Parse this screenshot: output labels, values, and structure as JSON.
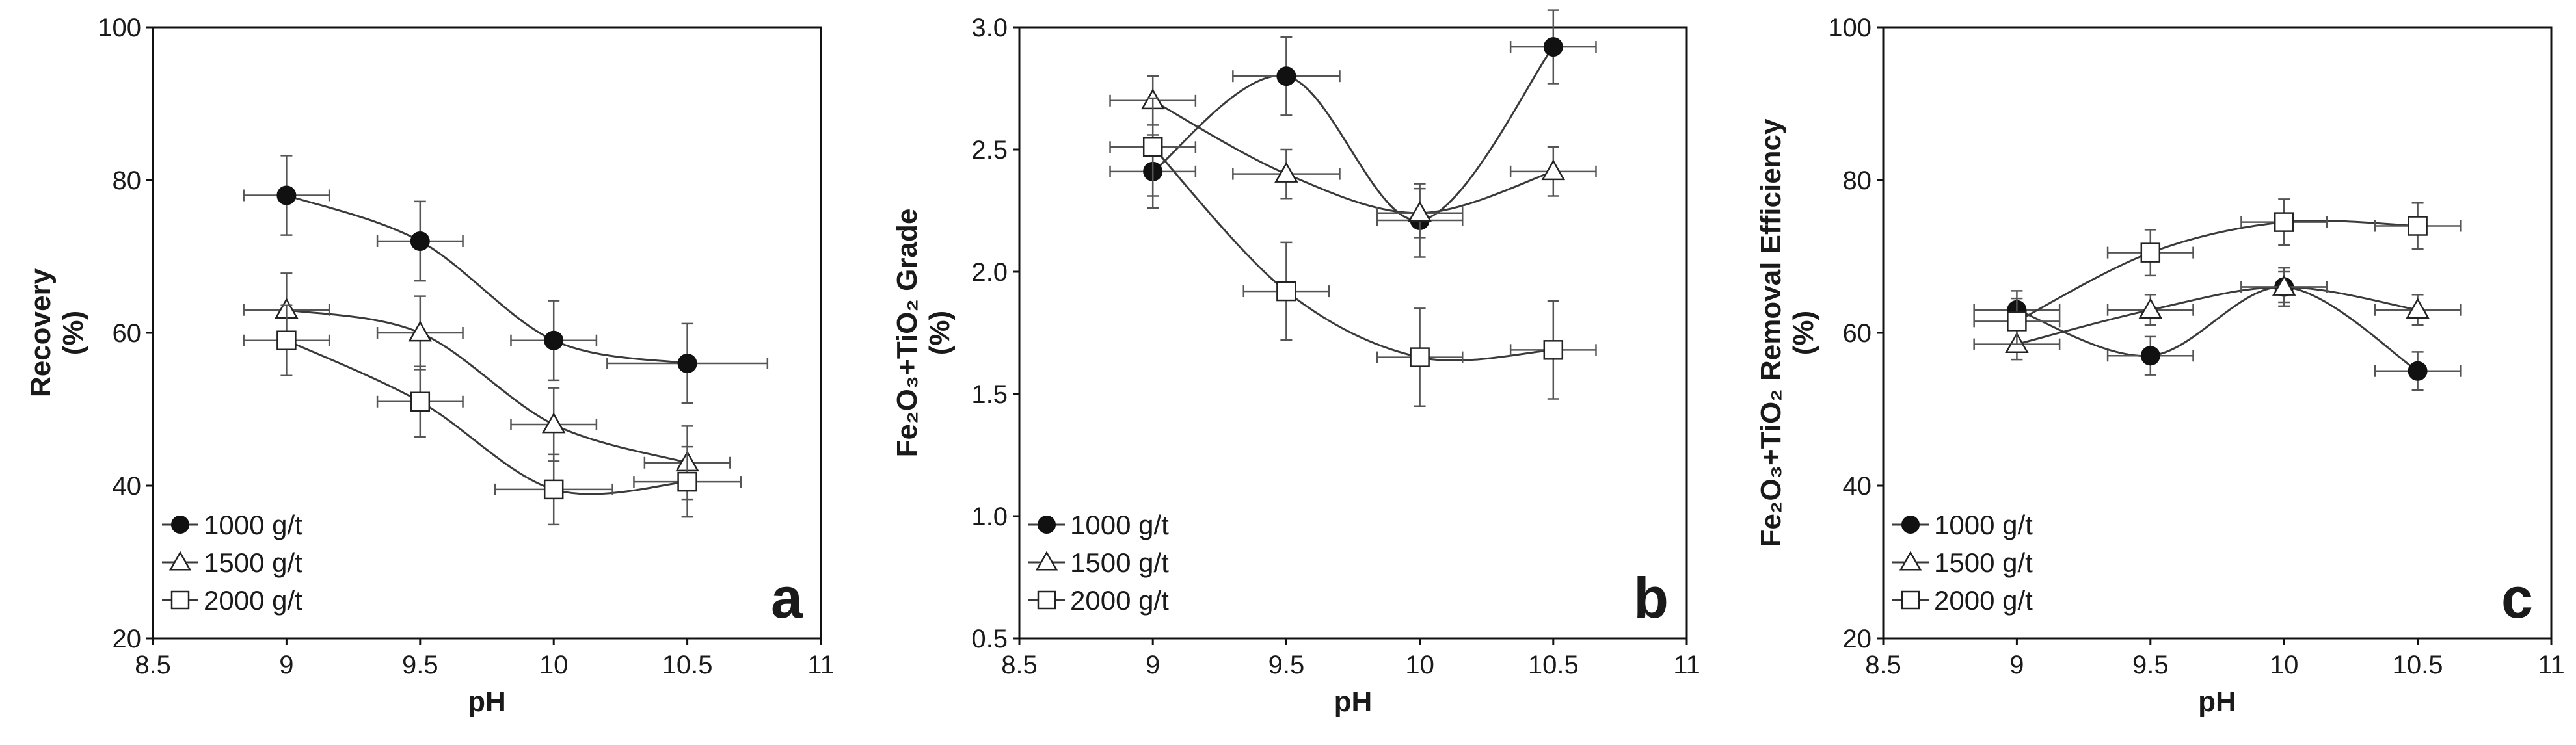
{
  "chart_data": [
    {
      "type": "scatter",
      "panel_label": "a",
      "xlabel": "pH",
      "ylabel_lines": [
        "Recovery",
        "(%)"
      ],
      "xlim": [
        8.5,
        11
      ],
      "ylim": [
        20,
        100
      ],
      "xticks": [
        8.5,
        9,
        9.5,
        10,
        10.5,
        11
      ],
      "xtick_labels": [
        "8.5",
        "9",
        "9.5",
        "10",
        "10.5",
        "11"
      ],
      "yticks": [
        20,
        40,
        60,
        80,
        100
      ],
      "ytick_labels": [
        "20",
        "40",
        "60",
        "80",
        "100"
      ],
      "legend_position": "bottom-left",
      "grid": false,
      "series": [
        {
          "name": "1000 g/t",
          "marker": "filled-circle",
          "x": [
            9,
            9.5,
            10,
            10.5
          ],
          "y": [
            78,
            72,
            59,
            56
          ],
          "xerr": [
            0.16,
            0.16,
            0.16,
            0.3
          ],
          "yerr": [
            5.2,
            5.2,
            5.2,
            5.2
          ]
        },
        {
          "name": "1500 g/t",
          "marker": "open-triangle",
          "x": [
            9,
            9.5,
            10,
            10.5
          ],
          "y": [
            63,
            60,
            48,
            43
          ],
          "xerr": [
            0.16,
            0.16,
            0.16,
            0.16
          ],
          "yerr": [
            4.8,
            4.8,
            4.8,
            4.8
          ]
        },
        {
          "name": "2000 g/t",
          "marker": "open-square",
          "x": [
            9,
            9.5,
            10,
            10.5
          ],
          "y": [
            59,
            51,
            39.5,
            40.5
          ],
          "xerr": [
            0.16,
            0.16,
            0.22,
            0.2
          ],
          "yerr": [
            4.6,
            4.6,
            4.6,
            4.6
          ]
        }
      ]
    },
    {
      "type": "scatter",
      "panel_label": "b",
      "xlabel": "pH",
      "ylabel_lines": [
        "Fe₂O₃+TiO₂ Grade",
        "(%)"
      ],
      "xlim": [
        8.5,
        11
      ],
      "ylim": [
        0.5,
        3.0
      ],
      "xticks": [
        8.5,
        9,
        9.5,
        10,
        10.5,
        11
      ],
      "xtick_labels": [
        "8.5",
        "9",
        "9.5",
        "10",
        "10.5",
        "11"
      ],
      "yticks": [
        0.5,
        1.0,
        1.5,
        2.0,
        2.5,
        3.0
      ],
      "ytick_labels": [
        "0.5",
        "1.0",
        "1.5",
        "2.0",
        "2.5",
        "3.0"
      ],
      "legend_position": "bottom-left",
      "grid": false,
      "series": [
        {
          "name": "1000 g/t",
          "marker": "filled-circle",
          "x": [
            9,
            9.5,
            10,
            10.5
          ],
          "y": [
            2.41,
            2.8,
            2.21,
            2.92
          ],
          "xerr": [
            0.16,
            0.2,
            0.16,
            0.16
          ],
          "yerr": [
            0.15,
            0.16,
            0.15,
            0.15
          ]
        },
        {
          "name": "1500 g/t",
          "marker": "open-triangle",
          "x": [
            9,
            9.5,
            10,
            10.5
          ],
          "y": [
            2.7,
            2.4,
            2.24,
            2.41
          ],
          "xerr": [
            0.16,
            0.2,
            0.16,
            0.16
          ],
          "yerr": [
            0.1,
            0.1,
            0.1,
            0.1
          ]
        },
        {
          "name": "2000 g/t",
          "marker": "open-square",
          "x": [
            9,
            9.5,
            10,
            10.5
          ],
          "y": [
            2.51,
            1.92,
            1.65,
            1.68
          ],
          "xerr": [
            0.16,
            0.16,
            0.16,
            0.16
          ],
          "yerr": [
            0.2,
            0.2,
            0.2,
            0.2
          ]
        }
      ]
    },
    {
      "type": "scatter",
      "panel_label": "c",
      "xlabel": "pH",
      "ylabel_lines": [
        "Fe₂O₃+TiO₂ Removal Efficiency",
        "(%)"
      ],
      "xlim": [
        8.5,
        11
      ],
      "ylim": [
        20,
        100
      ],
      "xticks": [
        8.5,
        9,
        9.5,
        10,
        10.5,
        11
      ],
      "xtick_labels": [
        "8.5",
        "9",
        "9.5",
        "10",
        "10.5",
        "11"
      ],
      "yticks": [
        20,
        40,
        60,
        80,
        100
      ],
      "ytick_labels": [
        "20",
        "40",
        "60",
        "80",
        "100"
      ],
      "legend_position": "bottom-left",
      "grid": false,
      "series": [
        {
          "name": "1000 g/t",
          "marker": "filled-circle",
          "x": [
            9,
            9.5,
            10,
            10.5
          ],
          "y": [
            63,
            57,
            66,
            55
          ],
          "xerr": [
            0.16,
            0.16,
            0.16,
            0.16
          ],
          "yerr": [
            2.5,
            2.5,
            2.5,
            2.5
          ]
        },
        {
          "name": "1500 g/t",
          "marker": "open-triangle",
          "x": [
            9,
            9.5,
            10,
            10.5
          ],
          "y": [
            58.5,
            63,
            66,
            63
          ],
          "xerr": [
            0.16,
            0.16,
            0.16,
            0.16
          ],
          "yerr": [
            2.0,
            2.0,
            2.0,
            2.0
          ]
        },
        {
          "name": "2000 g/t",
          "marker": "open-square",
          "x": [
            9,
            9.5,
            10,
            10.5
          ],
          "y": [
            61.5,
            70.5,
            74.5,
            74
          ],
          "xerr": [
            0.16,
            0.16,
            0.16,
            0.16
          ],
          "yerr": [
            3.0,
            3.0,
            3.0,
            3.0
          ]
        }
      ]
    }
  ]
}
